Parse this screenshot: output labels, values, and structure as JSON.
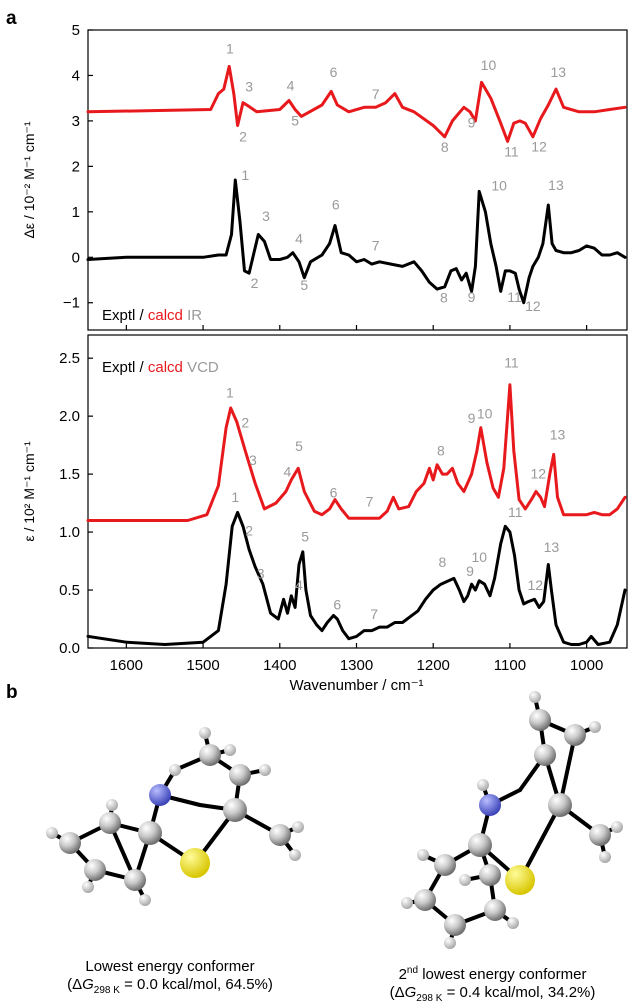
{
  "panels": {
    "a": "a",
    "b": "b"
  },
  "colors": {
    "experimental": "#000000",
    "calculated": "#e8191c",
    "label": "#9a9a9a"
  },
  "chart_data": [
    {
      "type": "line",
      "subplot": "top",
      "ylabel": "Δε / 10⁻² M⁻¹ cm⁻¹",
      "xlim": [
        1650,
        950
      ],
      "ylim": [
        -1.6,
        5
      ],
      "yticks": [
        -1,
        0,
        1,
        2,
        3,
        4,
        5
      ],
      "legend": {
        "exptl": "Exptl",
        "sep": " / ",
        "calcd": "calcd",
        "kind": "IR"
      },
      "series": [
        {
          "name": "calcd",
          "color": "#e8191c",
          "x": [
            1650,
            1490,
            1480,
            1473,
            1466,
            1460,
            1455,
            1448,
            1443,
            1430,
            1400,
            1388,
            1380,
            1372,
            1345,
            1333,
            1325,
            1310,
            1290,
            1275,
            1262,
            1250,
            1240,
            1225,
            1200,
            1185,
            1175,
            1160,
            1152,
            1145,
            1137,
            1125,
            1112,
            1103,
            1095,
            1087,
            1080,
            1070,
            1060,
            1050,
            1040,
            1030,
            1010,
            990,
            970,
            950
          ],
          "y": [
            3.2,
            3.25,
            3.6,
            3.7,
            4.2,
            3.6,
            2.9,
            3.4,
            3.35,
            3.2,
            3.25,
            3.45,
            3.25,
            3.1,
            3.35,
            3.65,
            3.35,
            3.2,
            3.3,
            3.3,
            3.4,
            3.6,
            3.3,
            3.2,
            2.9,
            2.65,
            3.0,
            3.3,
            3.2,
            3.0,
            3.85,
            3.5,
            2.95,
            2.55,
            2.95,
            3.0,
            2.95,
            2.65,
            3.05,
            3.35,
            3.7,
            3.3,
            3.2,
            3.2,
            3.25,
            3.3
          ]
        },
        {
          "name": "Exptl",
          "color": "#000000",
          "x": [
            1650,
            1600,
            1550,
            1500,
            1480,
            1470,
            1463,
            1458,
            1452,
            1446,
            1440,
            1428,
            1420,
            1412,
            1400,
            1390,
            1383,
            1375,
            1368,
            1360,
            1345,
            1335,
            1328,
            1320,
            1310,
            1300,
            1290,
            1280,
            1270,
            1255,
            1240,
            1225,
            1215,
            1205,
            1195,
            1185,
            1177,
            1170,
            1163,
            1157,
            1150,
            1145,
            1140,
            1132,
            1125,
            1118,
            1112,
            1106,
            1100,
            1093,
            1088,
            1082,
            1075,
            1070,
            1063,
            1057,
            1050,
            1045,
            1040,
            1030,
            1020,
            1010,
            1000,
            990,
            980,
            970,
            960,
            950
          ],
          "y": [
            -0.05,
            0,
            0,
            0,
            0.05,
            0.05,
            0.5,
            1.7,
            0.8,
            -0.3,
            -0.35,
            0.5,
            0.35,
            -0.05,
            -0.05,
            0,
            0.1,
            -0.1,
            -0.45,
            -0.1,
            0.05,
            0.3,
            0.7,
            0.1,
            0.05,
            -0.1,
            -0.05,
            -0.15,
            -0.1,
            -0.15,
            -0.2,
            -0.1,
            -0.3,
            -0.55,
            -0.7,
            -0.65,
            -0.3,
            -0.25,
            -0.5,
            -0.35,
            -0.75,
            -0.2,
            1.45,
            1.0,
            0.3,
            -0.2,
            -0.75,
            -0.3,
            -0.3,
            -0.35,
            -0.7,
            -1.0,
            -0.45,
            -0.2,
            0.0,
            0.3,
            1.15,
            0.3,
            0.15,
            0.1,
            0.1,
            0.15,
            0.25,
            0.2,
            0.05,
            0.05,
            0.1,
            0.0
          ]
        }
      ],
      "annotations": [
        {
          "text": "1",
          "x": 1465,
          "y": 4.48
        },
        {
          "text": "3",
          "x": 1440,
          "y": 3.65
        },
        {
          "text": "2",
          "x": 1448,
          "y": 2.55
        },
        {
          "text": "4",
          "x": 1386,
          "y": 3.67
        },
        {
          "text": "5",
          "x": 1380,
          "y": 2.9
        },
        {
          "text": "6",
          "x": 1330,
          "y": 3.97
        },
        {
          "text": "7",
          "x": 1275,
          "y": 3.48
        },
        {
          "text": "8",
          "x": 1185,
          "y": 2.32
        },
        {
          "text": "9",
          "x": 1150,
          "y": 2.85
        },
        {
          "text": "10",
          "x": 1128,
          "y": 4.12
        },
        {
          "text": "11",
          "x": 1098,
          "y": 2.22
        },
        {
          "text": "12",
          "x": 1062,
          "y": 2.33
        },
        {
          "text": "13",
          "x": 1037,
          "y": 3.97
        },
        {
          "text": "1",
          "x": 1445,
          "y": 1.7
        },
        {
          "text": "3",
          "x": 1418,
          "y": 0.8
        },
        {
          "text": "2",
          "x": 1433,
          "y": -0.68
        },
        {
          "text": "4",
          "x": 1375,
          "y": 0.3
        },
        {
          "text": "5",
          "x": 1368,
          "y": -0.72
        },
        {
          "text": "6",
          "x": 1327,
          "y": 1.05
        },
        {
          "text": "7",
          "x": 1275,
          "y": 0.15
        },
        {
          "text": "8",
          "x": 1186,
          "y": -1.0
        },
        {
          "text": "9",
          "x": 1150,
          "y": -0.98
        },
        {
          "text": "10",
          "x": 1114,
          "y": 1.47
        },
        {
          "text": "11",
          "x": 1094,
          "y": -0.98
        },
        {
          "text": "12",
          "x": 1070,
          "y": -1.18
        },
        {
          "text": "13",
          "x": 1040,
          "y": 1.48
        }
      ]
    },
    {
      "type": "line",
      "subplot": "bottom",
      "ylabel": "ε / 10² M⁻¹ cm⁻¹",
      "xlabel": "Wavenumber / cm⁻¹",
      "xlim": [
        1650,
        950
      ],
      "ylim": [
        0,
        2.7
      ],
      "xticks": [
        1600,
        1500,
        1400,
        1300,
        1200,
        1100,
        1000
      ],
      "yticks": [
        0.0,
        0.5,
        1.0,
        1.5,
        2.0,
        2.5
      ],
      "legend": {
        "exptl": "Exptl",
        "sep": " / ",
        "calcd": "calcd",
        "kind": "VCD"
      },
      "series": [
        {
          "name": "calcd",
          "color": "#e8191c",
          "x": [
            1650,
            1520,
            1495,
            1480,
            1470,
            1464,
            1456,
            1445,
            1432,
            1420,
            1405,
            1392,
            1385,
            1376,
            1368,
            1355,
            1345,
            1335,
            1328,
            1320,
            1310,
            1290,
            1270,
            1260,
            1252,
            1245,
            1232,
            1222,
            1212,
            1205,
            1200,
            1195,
            1188,
            1182,
            1175,
            1168,
            1160,
            1150,
            1143,
            1138,
            1130,
            1122,
            1115,
            1108,
            1100,
            1095,
            1088,
            1080,
            1072,
            1066,
            1060,
            1055,
            1048,
            1043,
            1038,
            1030,
            1015,
            1000,
            990,
            980,
            970,
            960,
            950
          ],
          "y": [
            1.1,
            1.1,
            1.15,
            1.4,
            1.9,
            2.07,
            1.95,
            1.7,
            1.42,
            1.2,
            1.25,
            1.35,
            1.45,
            1.55,
            1.35,
            1.18,
            1.15,
            1.2,
            1.28,
            1.2,
            1.12,
            1.12,
            1.12,
            1.18,
            1.3,
            1.2,
            1.22,
            1.35,
            1.42,
            1.55,
            1.45,
            1.58,
            1.5,
            1.5,
            1.55,
            1.42,
            1.35,
            1.5,
            1.7,
            1.9,
            1.6,
            1.38,
            1.3,
            1.55,
            2.27,
            1.7,
            1.28,
            1.2,
            1.28,
            1.35,
            1.3,
            1.22,
            1.5,
            1.67,
            1.3,
            1.15,
            1.15,
            1.15,
            1.17,
            1.15,
            1.15,
            1.2,
            1.3
          ]
        },
        {
          "name": "Exptl",
          "color": "#000000",
          "x": [
            1650,
            1600,
            1550,
            1500,
            1480,
            1470,
            1462,
            1455,
            1448,
            1440,
            1432,
            1422,
            1412,
            1402,
            1395,
            1390,
            1385,
            1380,
            1375,
            1370,
            1366,
            1360,
            1352,
            1345,
            1338,
            1330,
            1325,
            1318,
            1310,
            1300,
            1290,
            1280,
            1270,
            1260,
            1250,
            1240,
            1230,
            1220,
            1210,
            1200,
            1190,
            1180,
            1173,
            1166,
            1160,
            1155,
            1150,
            1145,
            1140,
            1133,
            1126,
            1120,
            1112,
            1106,
            1100,
            1094,
            1088,
            1082,
            1076,
            1068,
            1062,
            1056,
            1050,
            1046,
            1040,
            1030,
            1020,
            1010,
            1000,
            994,
            985,
            970,
            960,
            950
          ],
          "y": [
            0.1,
            0.05,
            0.03,
            0.05,
            0.15,
            0.55,
            1.05,
            1.17,
            1.05,
            0.85,
            0.7,
            0.55,
            0.3,
            0.25,
            0.42,
            0.3,
            0.45,
            0.35,
            0.72,
            0.83,
            0.5,
            0.28,
            0.2,
            0.15,
            0.22,
            0.28,
            0.25,
            0.15,
            0.08,
            0.1,
            0.15,
            0.15,
            0.18,
            0.18,
            0.22,
            0.22,
            0.27,
            0.32,
            0.42,
            0.5,
            0.55,
            0.58,
            0.6,
            0.5,
            0.4,
            0.45,
            0.55,
            0.5,
            0.58,
            0.55,
            0.45,
            0.6,
            0.9,
            1.05,
            1.0,
            0.8,
            0.5,
            0.38,
            0.4,
            0.42,
            0.35,
            0.4,
            0.72,
            0.5,
            0.2,
            0.05,
            0.03,
            0.03,
            0.05,
            0.1,
            0.03,
            0.05,
            0.2,
            0.5
          ]
        }
      ],
      "annotations": [
        {
          "text": "1",
          "x": 1465,
          "y": 2.16
        },
        {
          "text": "2",
          "x": 1445,
          "y": 1.9
        },
        {
          "text": "3",
          "x": 1435,
          "y": 1.58
        },
        {
          "text": "4",
          "x": 1390,
          "y": 1.48
        },
        {
          "text": "5",
          "x": 1375,
          "y": 1.7
        },
        {
          "text": "6",
          "x": 1330,
          "y": 1.3
        },
        {
          "text": "7",
          "x": 1283,
          "y": 1.22
        },
        {
          "text": "8",
          "x": 1190,
          "y": 1.66
        },
        {
          "text": "9",
          "x": 1150,
          "y": 1.94
        },
        {
          "text": "10",
          "x": 1133,
          "y": 1.98
        },
        {
          "text": "11",
          "x": 1098,
          "y": 2.42
        },
        {
          "text": "12",
          "x": 1063,
          "y": 1.46
        },
        {
          "text": "13",
          "x": 1038,
          "y": 1.8
        },
        {
          "text": "1",
          "x": 1458,
          "y": 1.26
        },
        {
          "text": "2",
          "x": 1440,
          "y": 0.97
        },
        {
          "text": "3",
          "x": 1425,
          "y": 0.6
        },
        {
          "text": "4",
          "x": 1375,
          "y": 0.5
        },
        {
          "text": "5",
          "x": 1367,
          "y": 0.92
        },
        {
          "text": "6",
          "x": 1325,
          "y": 0.33
        },
        {
          "text": "7",
          "x": 1277,
          "y": 0.25
        },
        {
          "text": "8",
          "x": 1188,
          "y": 0.7
        },
        {
          "text": "9",
          "x": 1152,
          "y": 0.62
        },
        {
          "text": "10",
          "x": 1140,
          "y": 0.74
        },
        {
          "text": "11",
          "x": 1093,
          "y": 1.13
        },
        {
          "text": "12",
          "x": 1067,
          "y": 0.5
        },
        {
          "text": "13",
          "x": 1046,
          "y": 0.83
        }
      ]
    }
  ],
  "conformers": [
    {
      "title": "Lowest energy conformer",
      "dg_prefix": "(Δ",
      "dg_symbol": "G",
      "dg_sub": "298 K",
      "dg_value": " = 0.0 kcal/mol, 64.5%)"
    },
    {
      "title_sup": "nd",
      "title_num": "2",
      "title_rest": " lowest energy conformer",
      "dg_prefix": "(Δ",
      "dg_symbol": "G",
      "dg_sub": "298 K",
      "dg_value": " = 0.4 kcal/mol, 34.2%)"
    }
  ]
}
